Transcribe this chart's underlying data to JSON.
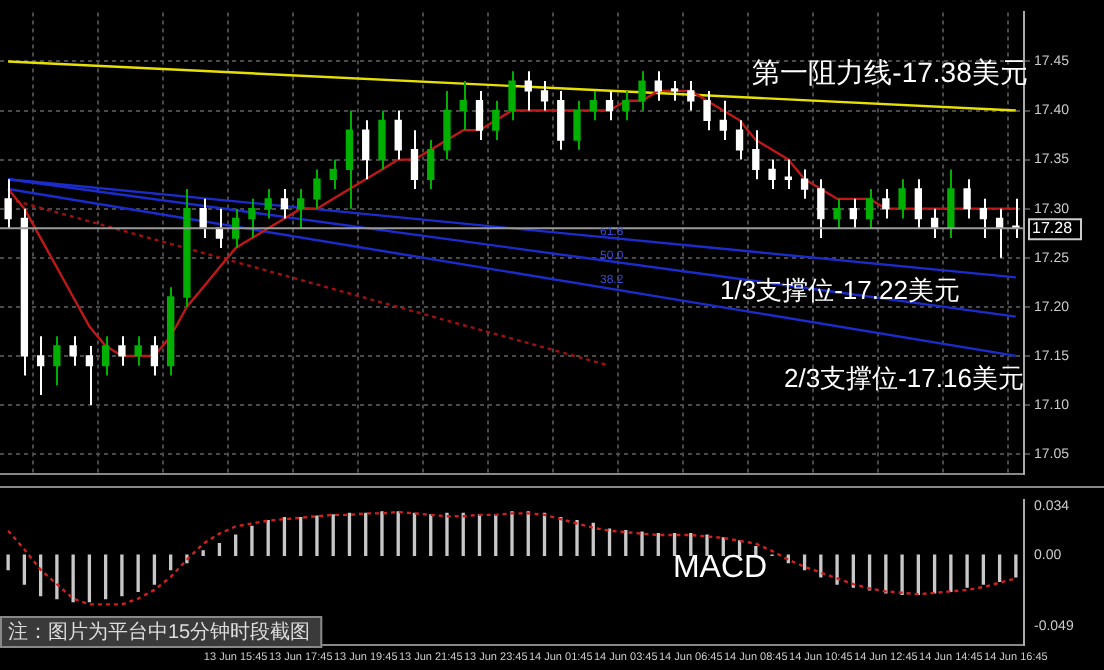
{
  "chart_data": [
    {
      "type": "candlestick",
      "tick_labels": "y",
      "grid": true,
      "legend": false,
      "categories": [
        null,
        null,
        null,
        null,
        null,
        null,
        null,
        null,
        null,
        null,
        null,
        null,
        null,
        null,
        null,
        null,
        null,
        null,
        null,
        null,
        null,
        null,
        null,
        null,
        null,
        null,
        null,
        null,
        null,
        null,
        null,
        null,
        null,
        null,
        null,
        null,
        null,
        null,
        null,
        null,
        null,
        null,
        null,
        null,
        null,
        null,
        null,
        null,
        null,
        null,
        null,
        null,
        null,
        null,
        null,
        null,
        null,
        null,
        null,
        null,
        null,
        null,
        null
      ],
      "ohlc": [
        [
          17.31,
          17.33,
          17.28,
          17.29
        ],
        [
          17.29,
          17.3,
          17.13,
          17.15
        ],
        [
          17.15,
          17.17,
          17.11,
          17.14
        ],
        [
          17.14,
          17.17,
          17.12,
          17.16
        ],
        [
          17.16,
          17.17,
          17.14,
          17.15
        ],
        [
          17.15,
          17.16,
          17.1,
          17.14
        ],
        [
          17.14,
          17.17,
          17.13,
          17.16
        ],
        [
          17.16,
          17.17,
          17.14,
          17.15
        ],
        [
          17.15,
          17.17,
          17.14,
          17.16
        ],
        [
          17.16,
          17.17,
          17.13,
          17.14
        ],
        [
          17.14,
          17.22,
          17.13,
          17.21
        ],
        [
          17.21,
          17.32,
          17.2,
          17.3
        ],
        [
          17.3,
          17.31,
          17.27,
          17.28
        ],
        [
          17.28,
          17.3,
          17.26,
          17.27
        ],
        [
          17.27,
          17.3,
          17.26,
          17.29
        ],
        [
          17.29,
          17.31,
          17.27,
          17.3
        ],
        [
          17.3,
          17.32,
          17.29,
          17.31
        ],
        [
          17.31,
          17.32,
          17.29,
          17.3
        ],
        [
          17.3,
          17.32,
          17.28,
          17.31
        ],
        [
          17.31,
          17.34,
          17.3,
          17.33
        ],
        [
          17.33,
          17.35,
          17.32,
          17.34
        ],
        [
          17.34,
          17.4,
          17.3,
          17.38
        ],
        [
          17.38,
          17.39,
          17.33,
          17.35
        ],
        [
          17.35,
          17.4,
          17.34,
          17.39
        ],
        [
          17.39,
          17.4,
          17.35,
          17.36
        ],
        [
          17.36,
          17.38,
          17.32,
          17.33
        ],
        [
          17.33,
          17.37,
          17.32,
          17.36
        ],
        [
          17.36,
          17.42,
          17.35,
          17.4
        ],
        [
          17.4,
          17.43,
          17.38,
          17.41
        ],
        [
          17.41,
          17.42,
          17.37,
          17.38
        ],
        [
          17.38,
          17.41,
          17.37,
          17.4
        ],
        [
          17.4,
          17.44,
          17.39,
          17.43
        ],
        [
          17.43,
          17.44,
          17.4,
          17.42
        ],
        [
          17.42,
          17.43,
          17.4,
          17.41
        ],
        [
          17.41,
          17.42,
          17.36,
          17.37
        ],
        [
          17.37,
          17.41,
          17.36,
          17.4
        ],
        [
          17.4,
          17.42,
          17.39,
          17.41
        ],
        [
          17.41,
          17.42,
          17.39,
          17.4
        ],
        [
          17.4,
          17.42,
          17.39,
          17.41
        ],
        [
          17.41,
          17.44,
          17.4,
          17.43
        ],
        [
          17.43,
          17.44,
          17.41,
          17.42
        ],
        [
          17.42,
          17.43,
          17.41,
          17.42
        ],
        [
          17.42,
          17.43,
          17.4,
          17.41
        ],
        [
          17.41,
          17.42,
          17.38,
          17.39
        ],
        [
          17.39,
          17.41,
          17.37,
          17.38
        ],
        [
          17.38,
          17.39,
          17.35,
          17.36
        ],
        [
          17.36,
          17.38,
          17.33,
          17.34
        ],
        [
          17.34,
          17.35,
          17.32,
          17.33
        ],
        [
          17.33,
          17.35,
          17.32,
          17.33
        ],
        [
          17.33,
          17.34,
          17.31,
          17.32
        ],
        [
          17.32,
          17.33,
          17.27,
          17.29
        ],
        [
          17.29,
          17.31,
          17.28,
          17.3
        ],
        [
          17.3,
          17.31,
          17.28,
          17.29
        ],
        [
          17.29,
          17.32,
          17.28,
          17.31
        ],
        [
          17.31,
          17.32,
          17.29,
          17.3
        ],
        [
          17.3,
          17.33,
          17.29,
          17.32
        ],
        [
          17.32,
          17.33,
          17.28,
          17.29
        ],
        [
          17.29,
          17.3,
          17.27,
          17.28
        ],
        [
          17.28,
          17.34,
          17.27,
          17.32
        ],
        [
          17.32,
          17.33,
          17.29,
          17.3
        ],
        [
          17.3,
          17.31,
          17.27,
          17.29
        ],
        [
          17.29,
          17.3,
          17.25,
          17.28
        ],
        [
          17.28,
          17.31,
          17.27,
          17.28
        ]
      ],
      "colors": [
        "#ffffff",
        "#ffffff",
        "#ffffff",
        "#00b000",
        "#ffffff",
        "#ffffff",
        "#00b000",
        "#ffffff",
        "#00b000",
        "#ffffff",
        "#00b000",
        "#00b000",
        "#ffffff",
        "#ffffff",
        "#00b000",
        "#00b000",
        "#00b000",
        "#ffffff",
        "#00b000",
        "#00b000",
        "#00b000",
        "#00b000",
        "#ffffff",
        "#00b000",
        "#ffffff",
        "#ffffff",
        "#00b000",
        "#00b000",
        "#00b000",
        "#ffffff",
        "#00b000",
        "#00b000",
        "#ffffff",
        "#ffffff",
        "#ffffff",
        "#00b000",
        "#00b000",
        "#ffffff",
        "#00b000",
        "#00b000",
        "#ffffff",
        "#ffffff",
        "#ffffff",
        "#ffffff",
        "#ffffff",
        "#ffffff",
        "#ffffff",
        "#ffffff",
        "#ffffff",
        "#ffffff",
        "#ffffff",
        "#00b000",
        "#ffffff",
        "#00b000",
        "#ffffff",
        "#00b000",
        "#ffffff",
        "#ffffff",
        "#00b000",
        "#ffffff",
        "#ffffff",
        "#ffffff",
        "#ffffff"
      ],
      "series": [
        {
          "type": "line",
          "color": "#c01818",
          "values": [
            17.32,
            17.3,
            17.27,
            17.24,
            17.21,
            17.18,
            17.16,
            17.15,
            17.15,
            17.15,
            17.17,
            17.2,
            17.22,
            17.24,
            17.26,
            17.27,
            17.28,
            17.29,
            17.3,
            17.3,
            17.31,
            17.32,
            17.33,
            17.34,
            17.35,
            17.35,
            17.36,
            17.37,
            17.38,
            17.38,
            17.39,
            17.4,
            17.4,
            17.4,
            17.4,
            17.4,
            17.4,
            17.4,
            17.41,
            17.41,
            17.42,
            17.42,
            17.42,
            17.41,
            17.4,
            17.39,
            17.37,
            17.36,
            17.35,
            17.33,
            17.32,
            17.31,
            17.31,
            17.31,
            17.3,
            17.3,
            17.3,
            17.3,
            17.3,
            17.3,
            17.3,
            17.3,
            17.3
          ]
        },
        {
          "type": "line",
          "color": "#e8e000",
          "values": [
            17.45,
            null,
            null,
            null,
            null,
            null,
            null,
            null,
            null,
            null,
            null,
            null,
            null,
            null,
            null,
            null,
            null,
            null,
            null,
            null,
            null,
            null,
            null,
            null,
            null,
            null,
            null,
            null,
            null,
            null,
            null,
            null,
            null,
            null,
            null,
            null,
            null,
            null,
            null,
            null,
            null,
            null,
            null,
            null,
            null,
            null,
            null,
            null,
            null,
            null,
            null,
            null,
            null,
            null,
            null,
            null,
            null,
            null,
            null,
            null,
            null,
            null,
            17.4
          ]
        },
        {
          "type": "line",
          "color": "#1c2ccc",
          "values": [
            17.33,
            null,
            null,
            null,
            null,
            null,
            null,
            null,
            null,
            null,
            null,
            null,
            null,
            null,
            null,
            null,
            null,
            null,
            null,
            null,
            null,
            null,
            null,
            null,
            null,
            null,
            null,
            null,
            null,
            null,
            null,
            null,
            null,
            null,
            null,
            null,
            null,
            null,
            null,
            null,
            null,
            null,
            null,
            null,
            null,
            null,
            null,
            null,
            null,
            null,
            null,
            null,
            null,
            null,
            null,
            null,
            null,
            null,
            null,
            null,
            null,
            null,
            17.23
          ]
        },
        {
          "type": "line",
          "color": "#1c2ccc",
          "values": [
            17.33,
            null,
            null,
            null,
            null,
            null,
            null,
            null,
            null,
            null,
            null,
            null,
            null,
            null,
            null,
            null,
            null,
            null,
            null,
            null,
            null,
            null,
            null,
            null,
            null,
            null,
            null,
            null,
            null,
            null,
            null,
            null,
            null,
            null,
            null,
            null,
            null,
            null,
            null,
            null,
            null,
            null,
            null,
            null,
            null,
            null,
            null,
            null,
            null,
            null,
            null,
            null,
            null,
            null,
            null,
            null,
            null,
            null,
            null,
            null,
            null,
            null,
            17.19
          ]
        },
        {
          "type": "line",
          "color": "#1c2ccc",
          "values": [
            17.32,
            null,
            null,
            null,
            null,
            null,
            null,
            null,
            null,
            null,
            null,
            null,
            null,
            null,
            null,
            null,
            null,
            null,
            null,
            null,
            null,
            null,
            null,
            null,
            null,
            null,
            null,
            null,
            null,
            null,
            null,
            null,
            null,
            null,
            null,
            null,
            null,
            null,
            null,
            null,
            null,
            null,
            null,
            null,
            null,
            null,
            null,
            null,
            null,
            null,
            null,
            null,
            null,
            null,
            null,
            null,
            null,
            null,
            null,
            null,
            null,
            null,
            17.15
          ]
        },
        {
          "type": "line",
          "color": "#a01010",
          "line_style": "dotted",
          "values": [
            17.31,
            null,
            null,
            null,
            null,
            null,
            null,
            null,
            null,
            null,
            null,
            null,
            null,
            null,
            null,
            null,
            null,
            null,
            null,
            null,
            null,
            null,
            null,
            null,
            null,
            null,
            null,
            null,
            null,
            null,
            null,
            null,
            null,
            null,
            null,
            null,
            null,
            17.14,
            null,
            null,
            null,
            null,
            null,
            null,
            null,
            null,
            null,
            null,
            null,
            null,
            null,
            null,
            null,
            null,
            null,
            null,
            null,
            null,
            null,
            null,
            null,
            null,
            null
          ]
        }
      ],
      "ylim": [
        17.03,
        17.5
      ],
      "yticks": [
        {
          "value": 17.05,
          "label": "17.05"
        },
        {
          "value": 17.1,
          "label": "17.10"
        },
        {
          "value": 17.15,
          "label": "17.15"
        },
        {
          "value": 17.2,
          "label": "17.20"
        },
        {
          "value": 17.25,
          "label": "17.25"
        },
        {
          "value": 17.3,
          "label": "17.30"
        },
        {
          "value": 17.35,
          "label": "17.35"
        },
        {
          "value": 17.4,
          "label": "17.40"
        },
        {
          "value": 17.45,
          "label": "17.45"
        }
      ],
      "ref_lines": [
        {
          "axis": "y",
          "value": 17.28,
          "label": "17.28",
          "color": "#9a9a9a"
        }
      ],
      "annotations": [
        "第一阻力线-17.38美元",
        "1/3支撑位-17.22美元",
        "2/3支撑位-17.16美元",
        "61.8",
        "50.0",
        "38.2"
      ]
    },
    {
      "type": "bar",
      "grid": false,
      "legend": false,
      "categories": [
        null,
        null,
        null,
        null,
        null,
        null,
        null,
        null,
        null,
        null,
        null,
        null,
        null,
        null,
        "13 Jun 15:45",
        null,
        null,
        null,
        "13 Jun 17:45",
        null,
        null,
        null,
        "13 Jun 19:45",
        null,
        null,
        null,
        "13 Jun 21:45",
        null,
        null,
        null,
        "13 Jun 23:45",
        null,
        null,
        null,
        "14 Jun 01:45",
        null,
        null,
        null,
        "14 Jun 03:45",
        null,
        null,
        null,
        "14 Jun 06:45",
        null,
        null,
        null,
        "14 Jun 08:45",
        null,
        null,
        null,
        "14 Jun 10:45",
        null,
        null,
        null,
        "14 Jun 12:45",
        null,
        null,
        null,
        "14 Jun 14:45",
        null,
        null,
        null,
        "14 Jun 16:45"
      ],
      "series": [
        {
          "type": "bar",
          "color": "#c8c8c8",
          "values": [
            -0.01,
            -0.02,
            -0.028,
            -0.03,
            -0.032,
            -0.032,
            -0.03,
            -0.028,
            -0.025,
            -0.02,
            -0.01,
            -0.005,
            0.003,
            0.008,
            0.014,
            0.02,
            0.024,
            0.026,
            0.026,
            0.027,
            0.028,
            0.029,
            0.029,
            0.03,
            0.03,
            0.029,
            0.028,
            0.029,
            0.029,
            0.028,
            0.028,
            0.03,
            0.03,
            0.029,
            0.026,
            0.024,
            0.022,
            0.018,
            0.017,
            0.016,
            0.015,
            0.015,
            0.015,
            0.014,
            0.012,
            0.01,
            0.006,
            0.0,
            -0.005,
            -0.01,
            -0.015,
            -0.02,
            -0.022,
            -0.024,
            -0.026,
            -0.027,
            -0.027,
            -0.026,
            -0.025,
            -0.022,
            -0.02,
            -0.018,
            -0.015
          ]
        },
        {
          "type": "line",
          "color": "#d02020",
          "line_style": "dotted",
          "values": [
            0.017,
            0.004,
            -0.01,
            -0.02,
            -0.03,
            -0.034,
            -0.034,
            -0.034,
            -0.03,
            -0.024,
            -0.015,
            -0.003,
            0.008,
            0.015,
            0.02,
            0.022,
            0.024,
            0.025,
            0.026,
            0.027,
            0.028,
            0.028,
            0.029,
            0.029,
            0.03,
            0.029,
            0.028,
            0.027,
            0.027,
            0.028,
            0.028,
            0.029,
            0.029,
            0.028,
            0.025,
            0.022,
            0.019,
            0.017,
            0.016,
            0.015,
            0.014,
            0.014,
            0.014,
            0.013,
            0.012,
            0.01,
            0.008,
            0.003,
            -0.003,
            -0.008,
            -0.012,
            -0.016,
            -0.02,
            -0.023,
            -0.025,
            -0.026,
            -0.027,
            -0.026,
            -0.025,
            -0.024,
            -0.022,
            -0.019,
            -0.016
          ]
        }
      ],
      "ylim": [
        -0.062,
        0.038
      ],
      "yticks": [
        -0.049,
        {
          "value": 0,
          "label": "0.00"
        },
        0.034
      ],
      "annotations": [
        "MACD",
        "注：图片为平台中15分钟时段截图"
      ]
    }
  ]
}
